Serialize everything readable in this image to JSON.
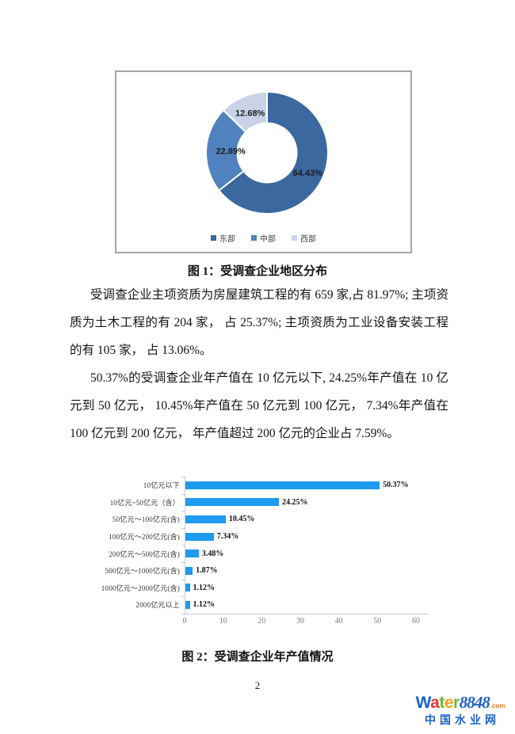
{
  "page": {
    "number": "2"
  },
  "figure1": {
    "caption": "图 1：受调查企业地区分布"
  },
  "paragraphs": {
    "p1": "受调查企业主项资质为房屋建筑工程的有 659 家,占 81.97%; 主项资质为土木工程的有 204 家， 占 25.37%; 主项资质为工业设备安装工程的有 105 家， 占 13.06%。",
    "p2": "50.37%的受调查企业年产值在 10 亿元以下, 24.25%年产值在 10 亿元到 50 亿元， 10.45%年产值在 50 亿元到 100 亿元， 7.34%年产值在 100 亿元到 200 亿元， 年产值超过 200 亿元的企业占 7.59%。"
  },
  "figure2": {
    "caption": "图 2：受调查企业年产值情况"
  },
  "watermark": {
    "brand_letters": [
      {
        "ch": "W",
        "color": "#1c63c8"
      },
      {
        "ch": "a",
        "color": "#e0393e"
      },
      {
        "ch": "t",
        "color": "#6fb92c"
      },
      {
        "ch": "e",
        "color": "#f6a21d"
      },
      {
        "ch": "r",
        "color": "#6fb92c"
      }
    ],
    "brand_number": "8848",
    "brand_number_color": "#1c63c8",
    "brand_tld": ".com",
    "brand_tld_color": "#e8701a",
    "subtitle": "中国水业网",
    "subtitle_color": "#1c63c8"
  },
  "chart_data": [
    {
      "type": "pie",
      "subtype": "donut",
      "title": "受调查企业地区分布",
      "labels": [
        "东部",
        "中部",
        "西部"
      ],
      "values": [
        64.43,
        22.89,
        12.68
      ],
      "value_labels": [
        "64.43%",
        "22.89%",
        "12.68%"
      ],
      "colors": [
        "#3a689f",
        "#4f82be",
        "#c9d3e7"
      ],
      "start_angle_deg": 0,
      "direction": "clockwise",
      "legend_position": "bottom"
    },
    {
      "type": "bar",
      "orientation": "horizontal",
      "title": "受调查企业年产值情况",
      "categories": [
        "10亿元以下",
        "10亿元~50亿元（含）",
        "50亿元～100亿元(含)",
        "100亿元～200亿元(含)",
        "200亿元～500亿元(含)",
        "500亿元～1000亿元(含)",
        "1000亿元～2000亿元(含)",
        "2000亿元以上"
      ],
      "values": [
        50.37,
        24.25,
        10.45,
        7.34,
        3.48,
        1.87,
        1.12,
        1.12
      ],
      "value_labels": [
        "50.37%",
        "24.25%",
        "10.45%",
        "7.34%",
        "3.48%",
        "1.87%",
        "1.12%",
        "1.12%"
      ],
      "xlim": [
        0,
        60
      ],
      "x_ticks": [
        0,
        10,
        20,
        30,
        40,
        50,
        60
      ],
      "bar_color": "#1e9bef",
      "grid": false,
      "legend_position": "none"
    }
  ]
}
